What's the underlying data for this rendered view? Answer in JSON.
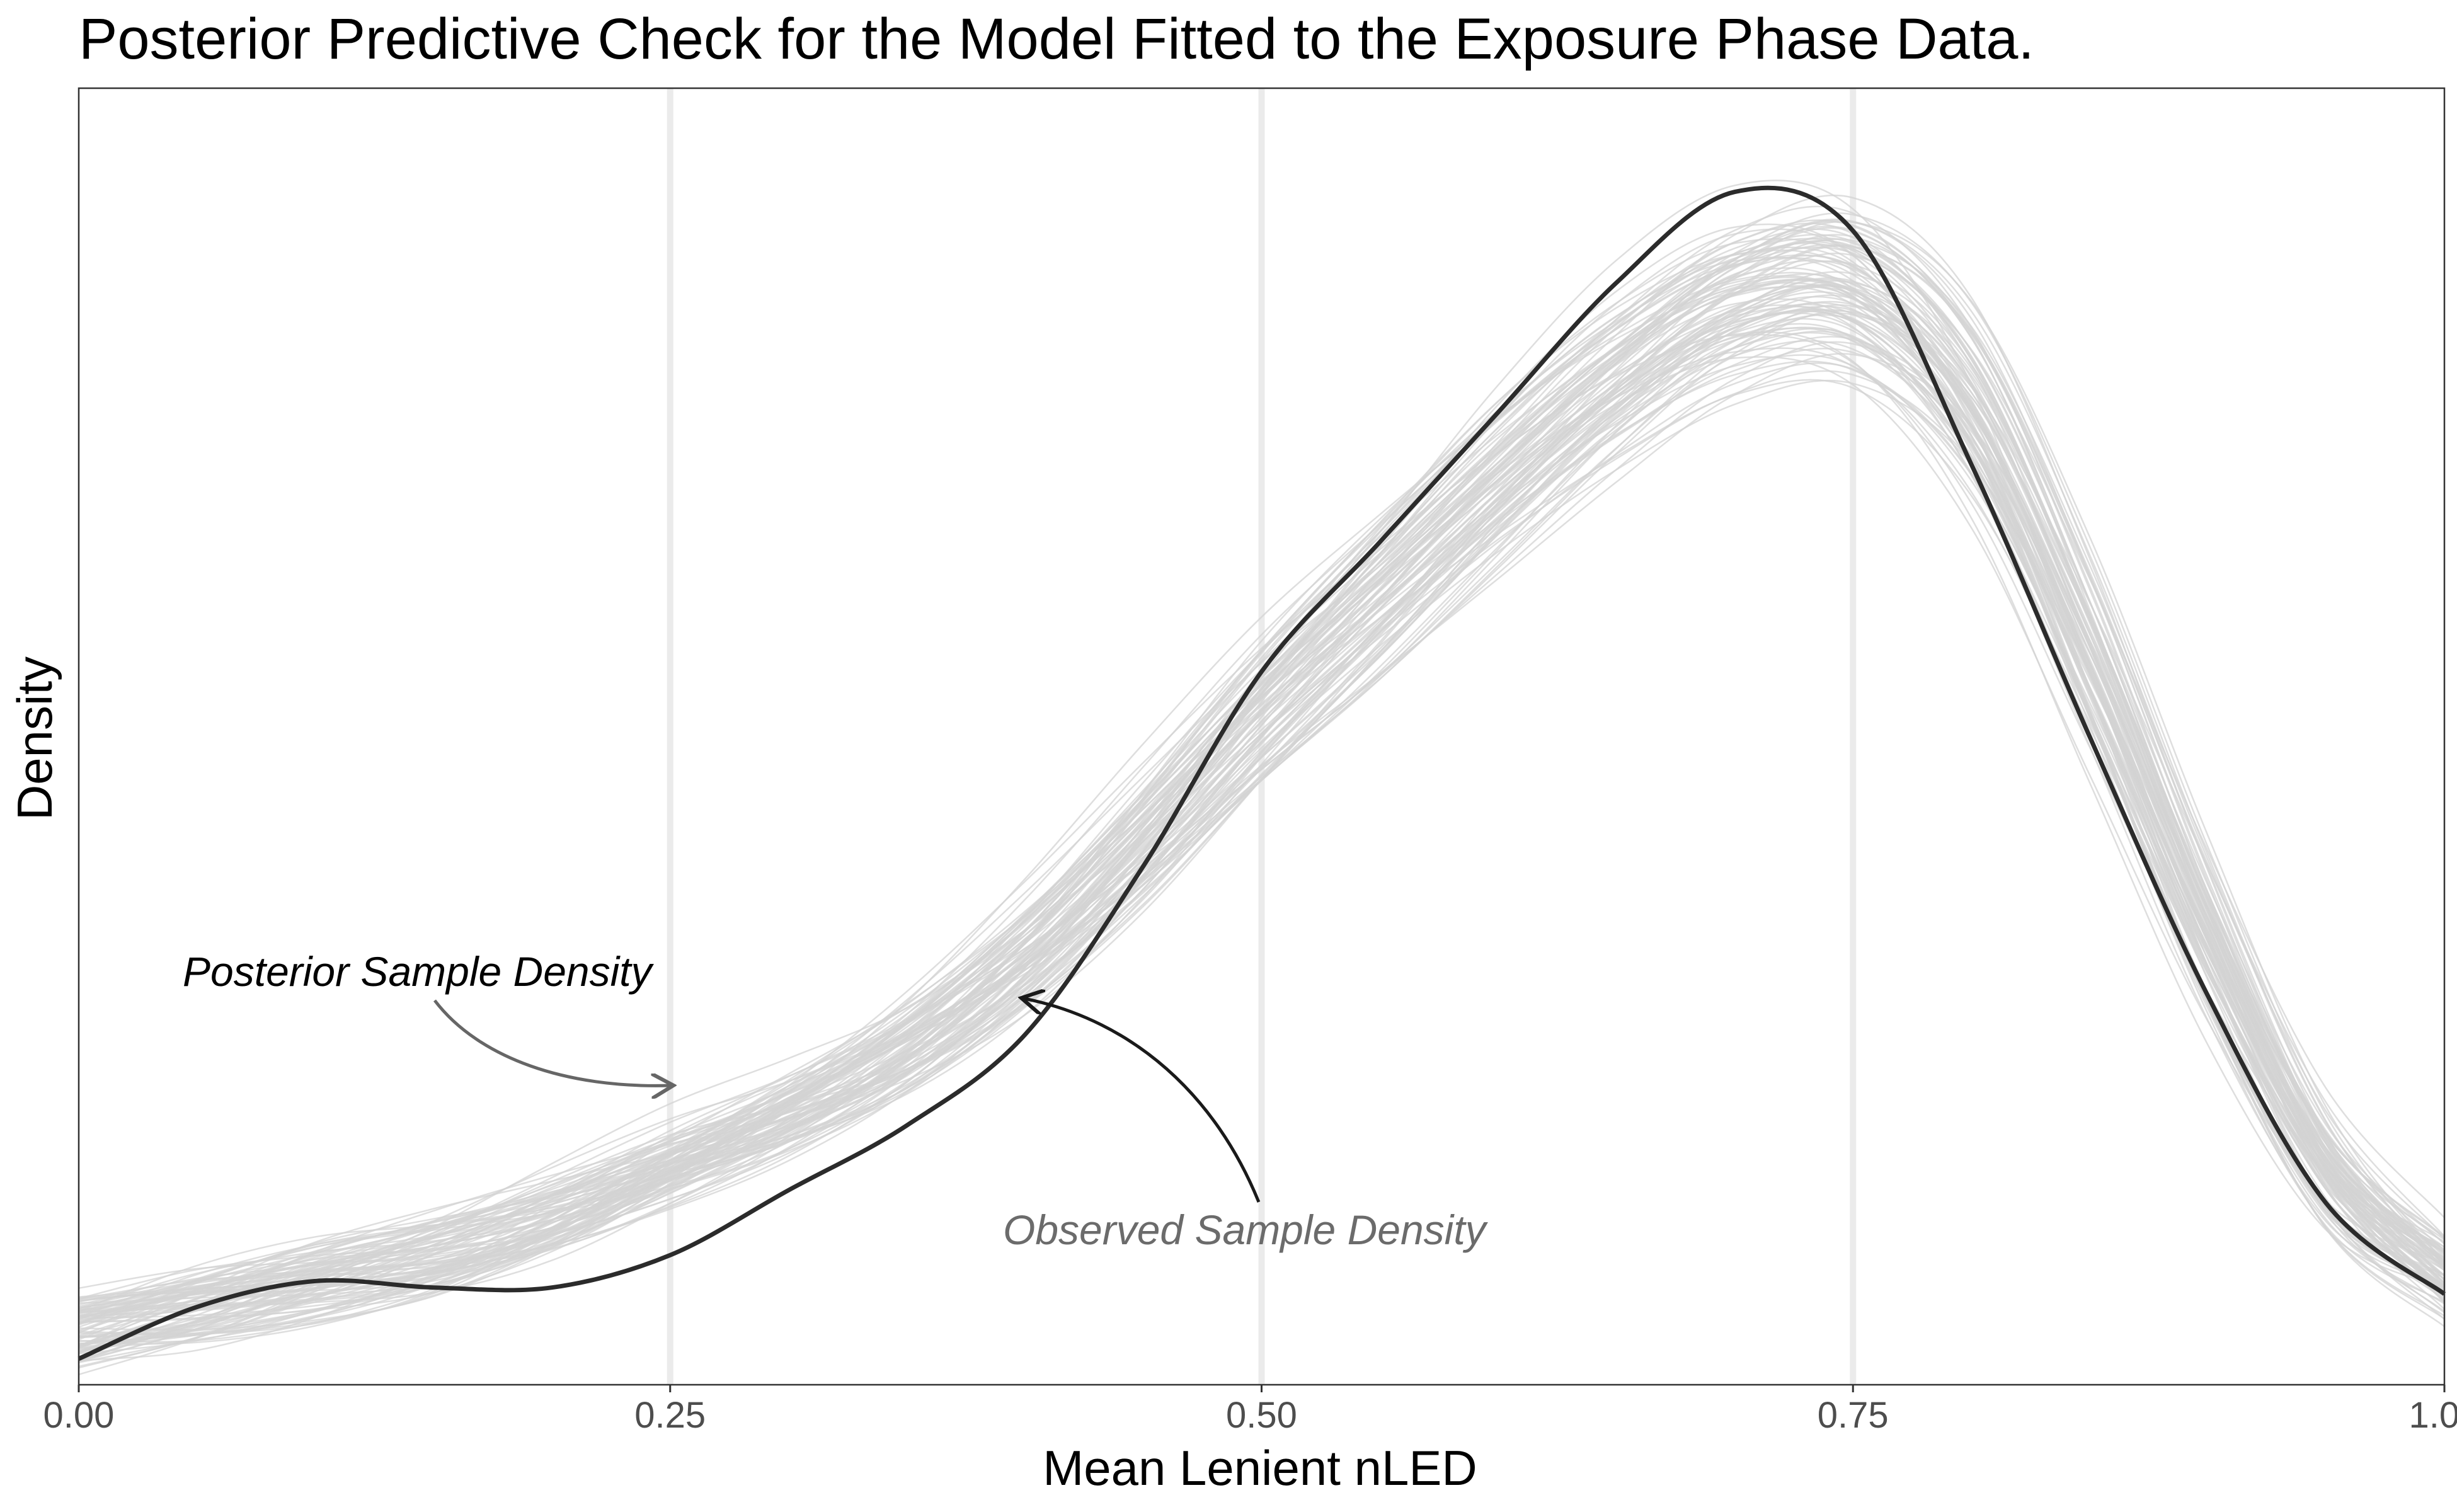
{
  "chart_data": {
    "type": "line",
    "title": "Posterior Predictive Check for the Model Fitted to the Exposure Phase Data.",
    "xlabel": "Mean Lenient nLED",
    "ylabel": "Density",
    "xlim": [
      0.0,
      1.0
    ],
    "ylim": [
      0.0,
      1.0
    ],
    "x_ticks": [
      0.0,
      0.25,
      0.5,
      0.75,
      1.0
    ],
    "x_tick_labels": [
      "0.00",
      "0.25",
      "0.50",
      "0.75",
      "1.00"
    ],
    "y_ticks_shown": false,
    "grid": "vertical major lines only",
    "posterior_sample_count": 100,
    "series": [
      {
        "name": "Observed Sample Density",
        "color": "#2b2b2b",
        "x": [
          0.0,
          0.05,
          0.1,
          0.15,
          0.2,
          0.25,
          0.3,
          0.35,
          0.4,
          0.45,
          0.5,
          0.55,
          0.6,
          0.65,
          0.7,
          0.75,
          0.8,
          0.85,
          0.9,
          0.95,
          1.0
        ],
        "y": [
          0.02,
          0.06,
          0.08,
          0.075,
          0.075,
          0.1,
          0.15,
          0.2,
          0.27,
          0.4,
          0.55,
          0.65,
          0.75,
          0.85,
          0.92,
          0.89,
          0.71,
          0.5,
          0.3,
          0.14,
          0.07
        ]
      },
      {
        "name": "Posterior Sample Density",
        "color": "#d3d3d3",
        "x": [
          0.0,
          0.05,
          0.1,
          0.15,
          0.2,
          0.25,
          0.3,
          0.35,
          0.4,
          0.45,
          0.5,
          0.55,
          0.6,
          0.65,
          0.7,
          0.75,
          0.8,
          0.85,
          0.9,
          0.95,
          1.0
        ],
        "y": [
          0.04,
          0.06,
          0.08,
          0.1,
          0.13,
          0.17,
          0.21,
          0.26,
          0.33,
          0.42,
          0.52,
          0.61,
          0.7,
          0.78,
          0.84,
          0.85,
          0.76,
          0.56,
          0.34,
          0.16,
          0.08
        ]
      }
    ],
    "annotations": [
      {
        "text": "Posterior Sample Density",
        "color": "#000000",
        "arrow_color": "#666666",
        "points_to": [
          0.25,
          0.22
        ]
      },
      {
        "text": "Observed Sample Density",
        "color": "#6b6b6b",
        "arrow_color": "#1a1a1a",
        "points_to": [
          0.4,
          0.29
        ]
      }
    ]
  }
}
